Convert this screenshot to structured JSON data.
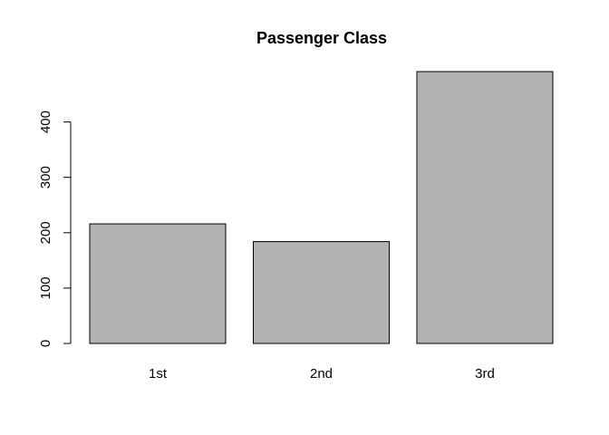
{
  "chart_data": {
    "type": "bar",
    "title": "Passenger Class",
    "xlabel": "",
    "ylabel": "",
    "categories": [
      "1st",
      "2nd",
      "3rd"
    ],
    "values": [
      216,
      184,
      491
    ],
    "ylim": [
      0,
      491
    ],
    "yticks": [
      0,
      100,
      200,
      300,
      400
    ],
    "ytick_labels": [
      "0",
      "100",
      "200",
      "300",
      "400"
    ],
    "bar_color": "#b3b3b3",
    "bar_border_color": "#000000",
    "grid": false,
    "legend": "none"
  }
}
